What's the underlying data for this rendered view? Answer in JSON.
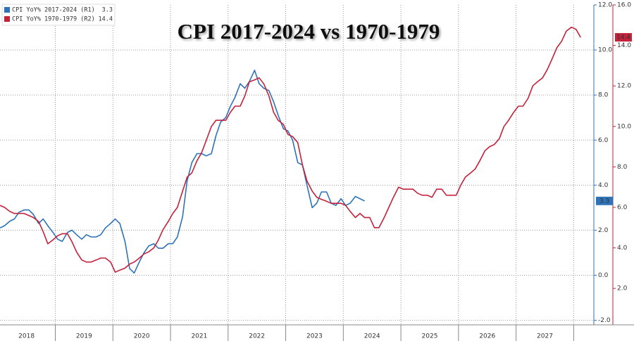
{
  "chart_data": {
    "type": "line",
    "title": "CPI 2017-2024 vs 1970-1979",
    "x": [
      2018.04,
      2018.12,
      2018.21,
      2018.29,
      2018.37,
      2018.46,
      2018.54,
      2018.62,
      2018.71,
      2018.79,
      2018.87,
      2018.96,
      2019.04,
      2019.12,
      2019.21,
      2019.29,
      2019.37,
      2019.46,
      2019.54,
      2019.62,
      2019.71,
      2019.79,
      2019.87,
      2019.96,
      2020.04,
      2020.12,
      2020.21,
      2020.29,
      2020.37,
      2020.46,
      2020.54,
      2020.62,
      2020.71,
      2020.79,
      2020.87,
      2020.96,
      2021.04,
      2021.12,
      2021.21,
      2021.29,
      2021.37,
      2021.46,
      2021.54,
      2021.62,
      2021.71,
      2021.79,
      2021.87,
      2021.96,
      2022.04,
      2022.12,
      2022.21,
      2022.29,
      2022.37,
      2022.46,
      2022.54,
      2022.62,
      2022.71,
      2022.79,
      2022.87,
      2022.96,
      2023.04,
      2023.12,
      2023.21,
      2023.29,
      2023.37,
      2023.46,
      2023.54,
      2023.62,
      2023.71,
      2023.79,
      2023.87,
      2023.96,
      2024.04,
      2024.12,
      2024.21,
      2024.29,
      2024.37,
      2024.46,
      2024.54,
      2024.62,
      2024.71,
      2024.79,
      2024.87,
      2024.96,
      2025.04,
      2025.12,
      2025.21,
      2025.29,
      2025.37,
      2025.46,
      2025.54,
      2025.62,
      2025.71,
      2025.79,
      2025.87,
      2025.96,
      2026.04,
      2026.12,
      2026.21,
      2026.29,
      2026.37,
      2026.46,
      2026.54,
      2026.62,
      2026.71,
      2026.79,
      2026.87,
      2026.96,
      2027.04,
      2027.12,
      2027.21,
      2027.29,
      2027.37,
      2027.46,
      2027.54,
      2027.62,
      2027.71,
      2027.79,
      2027.87,
      2027.96,
      2028.04,
      2028.12
    ],
    "series": [
      {
        "name": "CPI YoY% 2017-2024 (R1)",
        "color": "#2e72b8",
        "axis": "y",
        "values": [
          2.1,
          2.2,
          2.4,
          2.5,
          2.8,
          2.9,
          2.9,
          2.7,
          2.3,
          2.5,
          2.2,
          1.9,
          1.6,
          1.5,
          1.9,
          2.0,
          1.8,
          1.6,
          1.8,
          1.7,
          1.7,
          1.8,
          2.1,
          2.3,
          2.5,
          2.3,
          1.5,
          0.3,
          0.1,
          0.6,
          1.0,
          1.3,
          1.4,
          1.2,
          1.2,
          1.4,
          1.4,
          1.7,
          2.6,
          4.2,
          5.0,
          5.4,
          5.4,
          5.3,
          5.4,
          6.2,
          6.8,
          7.0,
          7.5,
          7.9,
          8.5,
          8.3,
          8.6,
          9.1,
          8.5,
          8.3,
          8.2,
          7.7,
          7.1,
          6.5,
          6.4,
          6.0,
          5.0,
          4.9,
          4.0,
          3.0,
          3.2,
          3.7,
          3.7,
          3.2,
          3.1,
          3.4,
          3.1,
          3.2,
          3.5,
          3.4,
          3.3,
          null,
          null,
          null,
          null,
          null,
          null,
          null,
          null,
          null,
          null,
          null,
          null,
          null,
          null,
          null,
          null,
          null,
          null,
          null,
          null,
          null,
          null,
          null,
          null,
          null,
          null,
          null,
          null,
          null,
          null,
          null,
          null,
          null,
          null,
          null,
          null,
          null,
          null,
          null,
          null,
          null,
          null,
          null,
          null,
          null
        ]
      },
      {
        "name": "CPI YoY% 1970-1979 (R2)",
        "color": "#c4213a",
        "axis": "y2",
        "values": [
          6.1,
          6.0,
          5.8,
          5.7,
          5.7,
          5.7,
          5.6,
          5.5,
          5.3,
          4.8,
          4.2,
          4.4,
          4.6,
          4.7,
          4.7,
          4.3,
          3.8,
          3.4,
          3.3,
          3.3,
          3.4,
          3.5,
          3.5,
          3.3,
          2.8,
          2.9,
          3.0,
          3.2,
          3.3,
          3.5,
          3.7,
          3.8,
          4.0,
          4.4,
          4.9,
          5.3,
          5.7,
          6.0,
          6.8,
          7.5,
          7.7,
          8.3,
          8.7,
          9.3,
          10.0,
          10.3,
          10.3,
          10.3,
          10.7,
          11.0,
          11.0,
          11.5,
          12.2,
          12.3,
          12.4,
          12.1,
          11.5,
          10.7,
          10.3,
          10.1,
          9.6,
          9.5,
          9.2,
          8.1,
          7.3,
          6.8,
          6.5,
          6.4,
          6.3,
          6.2,
          6.2,
          6.2,
          6.1,
          5.8,
          5.5,
          5.7,
          5.5,
          5.5,
          5.0,
          5.0,
          5.5,
          6.0,
          6.5,
          7.0,
          6.9,
          6.9,
          6.9,
          6.7,
          6.6,
          6.6,
          6.5,
          6.9,
          6.9,
          6.6,
          6.6,
          6.6,
          7.1,
          7.5,
          7.7,
          7.9,
          8.3,
          8.8,
          9.0,
          9.1,
          9.4,
          10.0,
          10.3,
          10.7,
          11.0,
          11.0,
          11.4,
          12.0,
          12.2,
          12.4,
          12.8,
          13.3,
          13.9,
          14.2,
          14.7,
          14.9,
          14.8,
          14.4
        ]
      }
    ],
    "xlim": [
      2018.04,
      2028.35
    ],
    "xticks": [
      {
        "value": 2018.5,
        "label": "2018"
      },
      {
        "value": 2019.5,
        "label": "2019"
      },
      {
        "value": 2020.5,
        "label": "2020"
      },
      {
        "value": 2021.5,
        "label": "2021"
      },
      {
        "value": 2022.5,
        "label": "2022"
      },
      {
        "value": 2023.5,
        "label": "2023"
      },
      {
        "value": 2024.5,
        "label": "2024"
      },
      {
        "value": 2025.5,
        "label": "2025"
      },
      {
        "value": 2026.5,
        "label": "2026"
      },
      {
        "value": 2027.5,
        "label": "2027"
      }
    ],
    "xgrid": [
      2019,
      2020,
      2021,
      2022,
      2023,
      2024,
      2025,
      2026,
      2027,
      2028
    ],
    "ylim": [
      -2.2,
      12.0
    ],
    "yticks": [
      {
        "value": -2,
        "label": "-2.0"
      },
      {
        "value": 0,
        "label": "0.0"
      },
      {
        "value": 2,
        "label": "2.0"
      },
      {
        "value": 4,
        "label": "4.0"
      },
      {
        "value": 6,
        "label": "6.0"
      },
      {
        "value": 8,
        "label": "8.0"
      },
      {
        "value": 10,
        "label": "10.0"
      },
      {
        "value": 12,
        "label": "12.0"
      }
    ],
    "y2lim": [
      0.2,
      16.0
    ],
    "y2ticks": [
      {
        "value": 2,
        "label": "2.0"
      },
      {
        "value": 4,
        "label": "4.0"
      },
      {
        "value": 6,
        "label": "6.0"
      },
      {
        "value": 8,
        "label": "8.0"
      },
      {
        "value": 10,
        "label": "10.0"
      },
      {
        "value": 12,
        "label": "12.0"
      },
      {
        "value": 14,
        "label": "14.0"
      },
      {
        "value": 16,
        "label": "16.0"
      }
    ],
    "grid": true,
    "legend": "top-left"
  }
}
